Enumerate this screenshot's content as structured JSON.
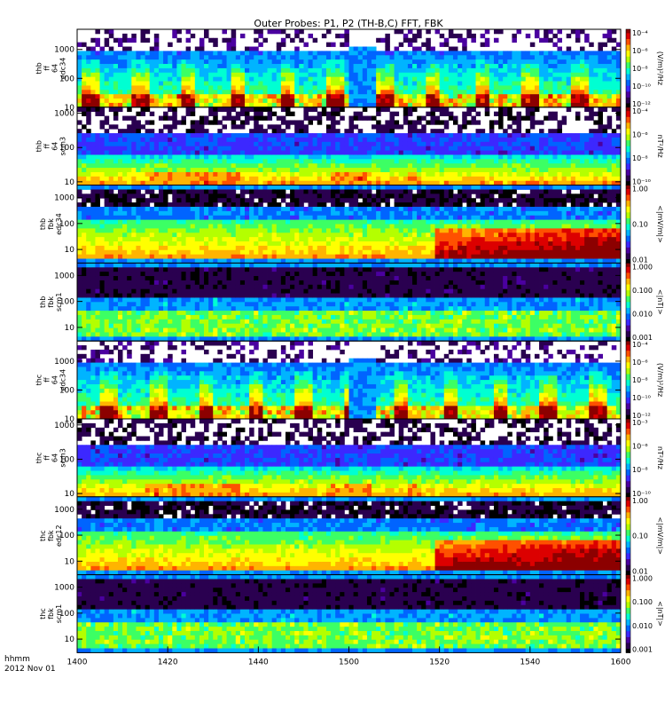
{
  "title": "Outer Probes: P1, P2 (TH-B,C) FFT, FBK",
  "time_axis": {
    "tick_labels": [
      "1400",
      "1420",
      "1440",
      "1500",
      "1520",
      "1540",
      "1600"
    ],
    "label_line1": "hhmm",
    "label_line2": "2012 Nov 01"
  },
  "chart_data": [
    {
      "type": "heatmap",
      "ylabel": [
        "thb",
        "ff",
        "64",
        "edc34"
      ],
      "yticks": [
        "10",
        "100",
        "1000"
      ],
      "yrange": [
        10,
        5000
      ],
      "yscale": "log",
      "colorbar": {
        "label": "(V/m)²/Hz",
        "ticks": [
          "10⁻⁴",
          "10⁻⁶",
          "10⁻⁸",
          "10⁻¹⁰",
          "10⁻¹²"
        ],
        "range": [
          "1e-12",
          "1e-4"
        ]
      }
    },
    {
      "type": "heatmap",
      "ylabel": [
        "thb",
        "ff",
        "64",
        "scm3"
      ],
      "yticks": [
        "10",
        "100",
        "1000"
      ],
      "yrange": [
        8,
        1500
      ],
      "yscale": "log",
      "colorbar": {
        "label": "nT²/Hz",
        "ticks": [
          "10⁻⁴",
          "10⁻⁶",
          "10⁻⁸",
          "10⁻¹⁰"
        ],
        "range": [
          "1e-10",
          "1e-3"
        ]
      }
    },
    {
      "type": "heatmap",
      "ylabel": [
        "thb",
        "fbk",
        "edc34"
      ],
      "yticks": [
        "10",
        "100",
        "1000"
      ],
      "yrange": [
        3,
        3000
      ],
      "yscale": "log",
      "colorbar": {
        "label": "<|mV/m|>",
        "ticks": [
          "1.00",
          "0.10",
          "0.01"
        ],
        "range": [
          0.003,
          1.5
        ]
      }
    },
    {
      "type": "heatmap",
      "ylabel": [
        "thb",
        "fbk",
        "scm1"
      ],
      "yticks": [
        "10",
        "100",
        "1000"
      ],
      "yrange": [
        3,
        3000
      ],
      "yscale": "log",
      "colorbar": {
        "label": "<|nT|>",
        "ticks": [
          "1.000",
          "0.100",
          "0.010",
          "0.001"
        ],
        "range": [
          0.001,
          1.0
        ]
      }
    },
    {
      "type": "heatmap",
      "ylabel": [
        "thc",
        "ff",
        "64",
        "edc34"
      ],
      "yticks": [
        "10",
        "100",
        "1000"
      ],
      "yrange": [
        10,
        5000
      ],
      "yscale": "log",
      "colorbar": {
        "label": "(V/m)²/Hz",
        "ticks": [
          "10⁻⁴",
          "10⁻⁶",
          "10⁻⁸",
          "10⁻¹⁰",
          "10⁻¹²"
        ],
        "range": [
          "1e-12",
          "1e-4"
        ]
      }
    },
    {
      "type": "heatmap",
      "ylabel": [
        "thc",
        "ff",
        "64",
        "scm3"
      ],
      "yticks": [
        "10",
        "100",
        "1000"
      ],
      "yrange": [
        8,
        1500
      ],
      "yscale": "log",
      "colorbar": {
        "label": "nT²/Hz",
        "ticks": [
          "10⁻³",
          "10⁻⁶",
          "10⁻⁸",
          "10⁻¹⁰"
        ],
        "range": [
          "1e-10",
          "1e-3"
        ]
      }
    },
    {
      "type": "heatmap",
      "ylabel": [
        "thc",
        "fbk",
        "edc12"
      ],
      "yticks": [
        "10",
        "100",
        "1000"
      ],
      "yrange": [
        3,
        3000
      ],
      "yscale": "log",
      "colorbar": {
        "label": "<|mV/m|>",
        "ticks": [
          "1.00",
          "0.10",
          "0.01"
        ],
        "range": [
          0.003,
          1.5
        ]
      }
    },
    {
      "type": "heatmap",
      "ylabel": [
        "thc",
        "fbk",
        "scm1"
      ],
      "yticks": [
        "10",
        "100",
        "1000"
      ],
      "yrange": [
        3,
        3000
      ],
      "yscale": "log",
      "colorbar": {
        "label": "<|nT|>",
        "ticks": [
          "1.000",
          "0.100",
          "0.010",
          "0.001"
        ],
        "range": [
          0.001,
          1.0
        ]
      }
    }
  ],
  "colors": {
    "palette": [
      "#000000",
      "#2a0050",
      "#4b00a0",
      "#3c28ff",
      "#0064ff",
      "#00b4ff",
      "#00ffd2",
      "#3cff64",
      "#b4ff00",
      "#ffff00",
      "#ffb400",
      "#ff5000",
      "#dc0000",
      "#8c0000"
    ],
    "background": "#ffffff",
    "axis": "#000000"
  }
}
